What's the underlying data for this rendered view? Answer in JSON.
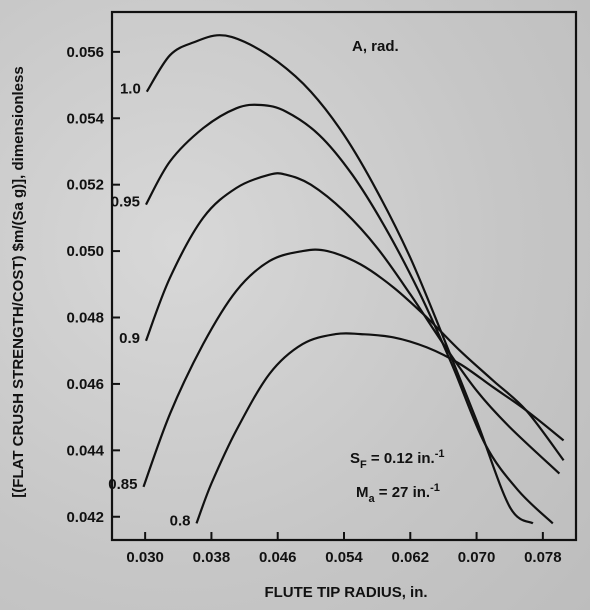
{
  "chart_data": {
    "type": "line",
    "title": "",
    "xlabel": "FLUTE TIP RADIUS, in.",
    "ylabel": "[(FLAT CRUSH STRENGTH/COST) $m/(Sa g)], dimensionless",
    "xlim": [
      0.026,
      0.082
    ],
    "ylim": [
      0.0413,
      0.0572
    ],
    "x_ticks": [
      0.03,
      0.038,
      0.046,
      0.054,
      0.062,
      0.07,
      0.078
    ],
    "x_tick_labels": [
      "0.030",
      "0.038",
      "0.046",
      "0.054",
      "0.062",
      "0.070",
      "0.078"
    ],
    "y_ticks": [
      0.042,
      0.044,
      0.046,
      0.048,
      0.05,
      0.052,
      0.054,
      0.056
    ],
    "y_tick_labels": [
      "0.042",
      "0.044",
      "0.046",
      "0.048",
      "0.050",
      "0.052",
      "0.054",
      "0.056"
    ],
    "legend_title": "A, rad.",
    "series": [
      {
        "name": "1.0",
        "points": [
          [
            0.0302,
            0.0548
          ],
          [
            0.033,
            0.0559
          ],
          [
            0.036,
            0.0563
          ],
          [
            0.039,
            0.0565
          ],
          [
            0.042,
            0.0563
          ],
          [
            0.046,
            0.0557
          ],
          [
            0.05,
            0.0548
          ],
          [
            0.054,
            0.0535
          ],
          [
            0.058,
            0.0518
          ],
          [
            0.062,
            0.0498
          ],
          [
            0.066,
            0.0474
          ],
          [
            0.07,
            0.0449
          ],
          [
            0.074,
            0.0423
          ],
          [
            0.0768,
            0.0418
          ]
        ]
      },
      {
        "name": "0.95",
        "points": [
          [
            0.0301,
            0.0514
          ],
          [
            0.033,
            0.0527
          ],
          [
            0.037,
            0.0537
          ],
          [
            0.041,
            0.0543
          ],
          [
            0.044,
            0.0544
          ],
          [
            0.047,
            0.0542
          ],
          [
            0.051,
            0.0535
          ],
          [
            0.055,
            0.0523
          ],
          [
            0.059,
            0.0507
          ],
          [
            0.063,
            0.0488
          ],
          [
            0.067,
            0.0466
          ],
          [
            0.071,
            0.0442
          ],
          [
            0.075,
            0.0428
          ],
          [
            0.0792,
            0.0418
          ]
        ]
      },
      {
        "name": "0.9",
        "points": [
          [
            0.0301,
            0.0473
          ],
          [
            0.033,
            0.0492
          ],
          [
            0.037,
            0.051
          ],
          [
            0.041,
            0.0519
          ],
          [
            0.045,
            0.0523
          ],
          [
            0.047,
            0.0523
          ],
          [
            0.05,
            0.052
          ],
          [
            0.054,
            0.0512
          ],
          [
            0.058,
            0.0501
          ],
          [
            0.062,
            0.0487
          ],
          [
            0.066,
            0.0472
          ],
          [
            0.07,
            0.0458
          ],
          [
            0.074,
            0.0447
          ],
          [
            0.08,
            0.0433
          ]
        ]
      },
      {
        "name": "0.85",
        "points": [
          [
            0.0298,
            0.0429
          ],
          [
            0.033,
            0.0451
          ],
          [
            0.037,
            0.0472
          ],
          [
            0.041,
            0.0488
          ],
          [
            0.045,
            0.0497
          ],
          [
            0.049,
            0.05
          ],
          [
            0.052,
            0.05
          ],
          [
            0.056,
            0.0496
          ],
          [
            0.06,
            0.0489
          ],
          [
            0.064,
            0.048
          ],
          [
            0.068,
            0.047
          ],
          [
            0.072,
            0.0461
          ],
          [
            0.076,
            0.0452
          ],
          [
            0.0805,
            0.0437
          ]
        ]
      },
      {
        "name": "0.8",
        "points": [
          [
            0.0362,
            0.0418
          ],
          [
            0.038,
            0.043
          ],
          [
            0.041,
            0.0446
          ],
          [
            0.045,
            0.0463
          ],
          [
            0.049,
            0.0472
          ],
          [
            0.053,
            0.0475
          ],
          [
            0.056,
            0.0475
          ],
          [
            0.06,
            0.0474
          ],
          [
            0.064,
            0.0471
          ],
          [
            0.068,
            0.0466
          ],
          [
            0.072,
            0.0459
          ],
          [
            0.076,
            0.0452
          ],
          [
            0.0805,
            0.0443
          ]
        ]
      }
    ],
    "annotations": {
      "sf_symbol": "S",
      "sf_sub": "F",
      "sf_value": " = 0.12 in.",
      "ma_symbol": "M",
      "ma_sub": "a",
      "ma_value": " = 27 in.",
      "inverse_exp": "-1"
    },
    "grid": false,
    "legend": "top-right"
  }
}
